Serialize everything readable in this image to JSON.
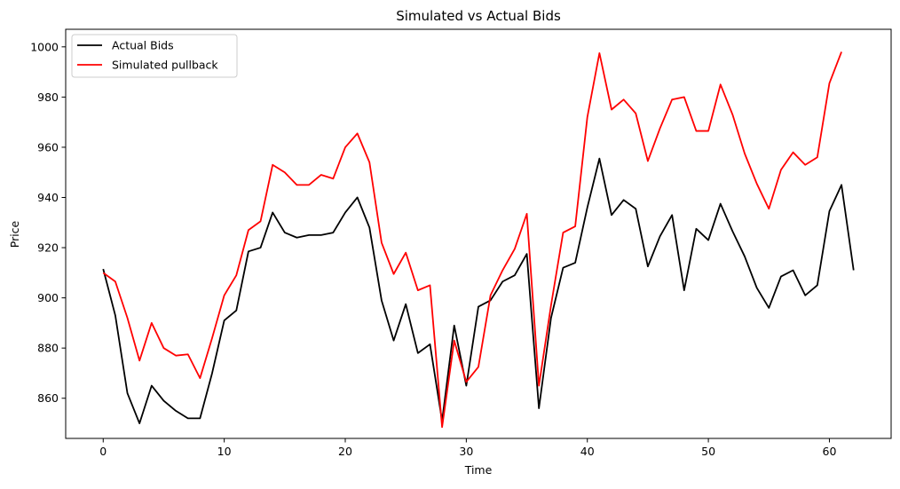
{
  "chart_data": {
    "type": "line",
    "title": "Simulated vs Actual Bids",
    "xlabel": "Time",
    "ylabel": "Price",
    "xlim": [
      -3.1,
      65.1
    ],
    "ylim": [
      844,
      1007
    ],
    "xticks": [
      0,
      10,
      20,
      30,
      40,
      50,
      60
    ],
    "yticks": [
      860,
      880,
      900,
      920,
      940,
      960,
      980,
      1000
    ],
    "grid": false,
    "legend": "top-left",
    "series": [
      {
        "name": "Actual Bids",
        "color": "#000000",
        "x": [
          0,
          1,
          2,
          3,
          4,
          5,
          6,
          7,
          8,
          9,
          10,
          11,
          12,
          13,
          14,
          15,
          16,
          17,
          18,
          19,
          20,
          21,
          22,
          23,
          24,
          25,
          26,
          27,
          28,
          29,
          30,
          31,
          32,
          33,
          34,
          35,
          36,
          37,
          38,
          39,
          40,
          41,
          42,
          43,
          44,
          45,
          46,
          47,
          48,
          49,
          50,
          51,
          52,
          53,
          54,
          55,
          56,
          57,
          58,
          59,
          60,
          61,
          62
        ],
        "values": [
          911.5,
          893,
          862,
          850,
          865,
          859,
          855,
          852,
          852,
          870,
          891,
          895,
          918.5,
          920,
          934,
          926,
          924,
          925,
          925,
          926,
          934,
          940,
          928,
          899,
          883,
          897.5,
          878,
          881.5,
          851,
          889,
          865,
          896.5,
          899,
          906.5,
          909,
          917.5,
          856,
          892,
          912,
          914,
          936,
          955.5,
          933,
          939,
          935.5,
          912.5,
          924.5,
          933,
          903,
          927.5,
          923,
          937.5,
          926.5,
          916.5,
          904,
          896,
          908.5,
          911,
          901,
          905,
          934.5,
          945,
          911
        ]
      },
      {
        "name": "Simulated pullback",
        "color": "#ff0000",
        "x": [
          0,
          1,
          2,
          3,
          4,
          5,
          6,
          7,
          8,
          9,
          10,
          11,
          12,
          13,
          14,
          15,
          16,
          17,
          18,
          19,
          20,
          21,
          22,
          23,
          24,
          25,
          26,
          27,
          28,
          29,
          30,
          31,
          32,
          33,
          34,
          35,
          36,
          37,
          38,
          39,
          40,
          41,
          42,
          43,
          44,
          45,
          46,
          47,
          48,
          49,
          50,
          51,
          52,
          53,
          54,
          55,
          56,
          57,
          58,
          59,
          60,
          61
        ],
        "values": [
          910,
          906.5,
          892,
          875,
          890,
          880,
          877,
          877.5,
          868,
          884,
          901,
          909,
          927,
          930.5,
          953,
          950,
          945,
          945,
          949,
          947.5,
          960,
          965.5,
          954,
          922,
          909.5,
          918,
          903,
          905,
          848.5,
          883,
          866.5,
          872.5,
          901,
          911,
          919.5,
          933.5,
          865,
          897,
          926,
          928.5,
          972,
          997.5,
          975,
          979,
          973.5,
          954.5,
          967.5,
          979,
          980,
          966.5,
          966.5,
          985,
          973,
          957.5,
          945.5,
          935.5,
          951,
          958,
          953,
          956,
          985.5,
          998
        ]
      }
    ]
  }
}
